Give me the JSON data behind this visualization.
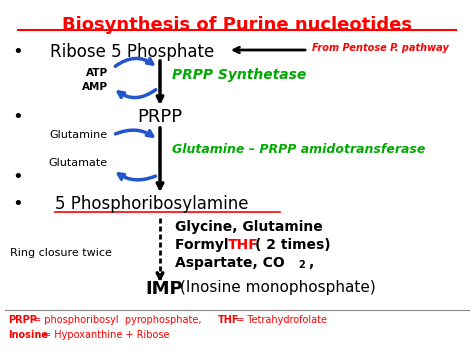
{
  "bg_color": "#ffffff",
  "title": "Biosynthesis of Purine nucleotides",
  "title_color": "#ff0000",
  "title_underline_color": "#ff0000",
  "footer1_parts": [
    {
      "text": "PRPP",
      "color": "#ff0000",
      "bold": true
    },
    {
      "text": " = phosphoribosyl  pyrophosphate,  ",
      "color": "#ff0000",
      "bold": false
    },
    {
      "text": "THF",
      "color": "#ff0000",
      "bold": true
    },
    {
      "text": " = Tetrahydrofolate",
      "color": "#ff0000",
      "bold": false
    }
  ],
  "footer2_parts": [
    {
      "text": "Inosine",
      "color": "#ff0000",
      "bold": true
    },
    {
      "text": " = Hypoxanthine + Ribose",
      "color": "#ff0000",
      "bold": false
    }
  ],
  "blue_arrow_color": "#2255cc",
  "green_text_color": "#00aa00",
  "red_text_color": "#ff0000",
  "black": "#000000"
}
